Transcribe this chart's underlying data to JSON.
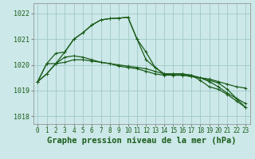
{
  "background_color": "#cce8e8",
  "grid_color": "#a0c8c8",
  "line_color": "#1a5c1a",
  "title": "Graphe pression niveau de la mer (hPa)",
  "xlim": [
    -0.5,
    23.5
  ],
  "ylim": [
    1017.7,
    1022.4
  ],
  "yticks": [
    1018,
    1019,
    1020,
    1021,
    1022
  ],
  "xtick_labels": [
    "0",
    "1",
    "2",
    "3",
    "4",
    "5",
    "6",
    "7",
    "8",
    "9",
    "10",
    "11",
    "12",
    "13",
    "14",
    "15",
    "16",
    "17",
    "18",
    "19",
    "20",
    "21",
    "22",
    "23"
  ],
  "series": [
    [
      1019.35,
      1019.65,
      1020.05,
      1020.5,
      1021.0,
      1021.25,
      1021.55,
      1021.75,
      1021.8,
      1021.82,
      1021.85,
      1021.0,
      1020.5,
      1019.9,
      1019.65,
      1019.65,
      1019.65,
      1019.6,
      1019.5,
      1019.35,
      1019.15,
      1018.9,
      1018.7,
      1018.5
    ],
    [
      1019.35,
      1019.65,
      1020.05,
      1020.1,
      1020.2,
      1020.2,
      1020.15,
      1020.1,
      1020.05,
      1020.0,
      1019.95,
      1019.9,
      1019.85,
      1019.75,
      1019.65,
      1019.6,
      1019.6,
      1019.55,
      1019.5,
      1019.45,
      1019.35,
      1019.25,
      1019.15,
      1019.1
    ],
    [
      1019.35,
      1020.05,
      1020.05,
      1020.3,
      1020.35,
      1020.3,
      1020.2,
      1020.1,
      1020.05,
      1019.95,
      1019.9,
      1019.85,
      1019.75,
      1019.65,
      1019.6,
      1019.6,
      1019.6,
      1019.55,
      1019.5,
      1019.4,
      1019.3,
      1019.05,
      1018.7,
      1018.35
    ],
    [
      1019.35,
      1020.05,
      1020.45,
      1020.5,
      1021.0,
      1021.25,
      1021.55,
      1021.75,
      1021.8,
      1021.82,
      1021.85,
      1021.0,
      1020.2,
      1019.9,
      1019.65,
      1019.65,
      1019.65,
      1019.6,
      1019.4,
      1019.15,
      1019.05,
      1018.85,
      1018.6,
      1018.35
    ]
  ],
  "marker_size": 2.5,
  "line_width": 0.9,
  "title_fontsize": 7.5,
  "tick_fontsize": 5.5
}
